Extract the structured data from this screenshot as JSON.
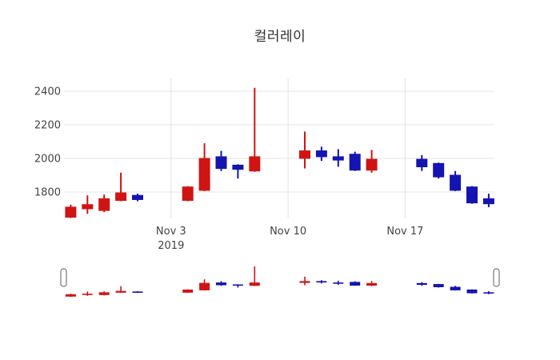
{
  "title": "컬러레이",
  "chart_data": {
    "type": "candlestick",
    "title": "컬러레이",
    "legend": null,
    "grid": true,
    "rangeslider": {
      "visible": true
    },
    "colors": {
      "increasing": "#d01414",
      "decreasing": "#1414b0",
      "grid": "#e4e4e4",
      "tick_text": "#444444",
      "slider_handle_border": "#777777",
      "slider_handle_fill": "#ffffff"
    },
    "yaxis": {
      "ticks": [
        1800,
        2000,
        2200,
        2400
      ],
      "range_hint": [
        1640,
        2450
      ]
    },
    "xaxis": {
      "ticks": [
        {
          "date": "2019-11-03",
          "label": "Nov 3",
          "sublabel": "2019"
        },
        {
          "date": "2019-11-10",
          "label": "Nov 10",
          "sublabel": ""
        },
        {
          "date": "2019-11-17",
          "label": "Nov 17",
          "sublabel": ""
        }
      ]
    },
    "candles": [
      {
        "date": "2019-10-28",
        "open": 1650,
        "high": 1725,
        "low": 1645,
        "close": 1710
      },
      {
        "date": "2019-10-29",
        "open": 1700,
        "high": 1780,
        "low": 1670,
        "close": 1725
      },
      {
        "date": "2019-10-30",
        "open": 1690,
        "high": 1785,
        "low": 1680,
        "close": 1760
      },
      {
        "date": "2019-10-31",
        "open": 1750,
        "high": 1915,
        "low": 1745,
        "close": 1795
      },
      {
        "date": "2019-11-01",
        "open": 1780,
        "high": 1790,
        "low": 1745,
        "close": 1755
      },
      {
        "date": "2019-11-04",
        "open": 1750,
        "high": 1835,
        "low": 1745,
        "close": 1830
      },
      {
        "date": "2019-11-05",
        "open": 1810,
        "high": 2090,
        "low": 1805,
        "close": 2000
      },
      {
        "date": "2019-11-06",
        "open": 2010,
        "high": 2045,
        "low": 1925,
        "close": 1940
      },
      {
        "date": "2019-11-07",
        "open": 1960,
        "high": 1965,
        "low": 1880,
        "close": 1935
      },
      {
        "date": "2019-11-08",
        "open": 1925,
        "high": 2420,
        "low": 1920,
        "close": 2010
      },
      {
        "date": "2019-11-11",
        "open": 2000,
        "high": 2160,
        "low": 1940,
        "close": 2045
      },
      {
        "date": "2019-11-12",
        "open": 2045,
        "high": 2070,
        "low": 1985,
        "close": 2010
      },
      {
        "date": "2019-11-13",
        "open": 2010,
        "high": 2055,
        "low": 1950,
        "close": 1990
      },
      {
        "date": "2019-11-14",
        "open": 2025,
        "high": 2040,
        "low": 1925,
        "close": 1930
      },
      {
        "date": "2019-11-15",
        "open": 1930,
        "high": 2050,
        "low": 1915,
        "close": 1995
      },
      {
        "date": "2019-11-18",
        "open": 1995,
        "high": 2020,
        "low": 1925,
        "close": 1950
      },
      {
        "date": "2019-11-19",
        "open": 1970,
        "high": 1975,
        "low": 1880,
        "close": 1890
      },
      {
        "date": "2019-11-20",
        "open": 1900,
        "high": 1925,
        "low": 1805,
        "close": 1810
      },
      {
        "date": "2019-11-21",
        "open": 1830,
        "high": 1835,
        "low": 1730,
        "close": 1735
      },
      {
        "date": "2019-11-22",
        "open": 1760,
        "high": 1790,
        "low": 1710,
        "close": 1730
      }
    ]
  }
}
